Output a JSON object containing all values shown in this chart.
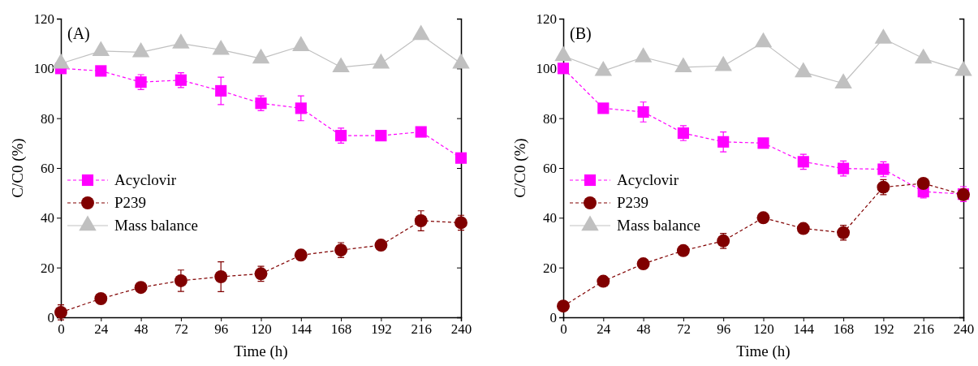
{
  "chart_data": [
    {
      "type": "line",
      "annotations": [
        "(A)"
      ],
      "xlabel": "Time (h)",
      "ylabel": "C/C0 (%)",
      "x": [
        0,
        24,
        48,
        72,
        96,
        120,
        144,
        168,
        192,
        216,
        240
      ],
      "xlim": [
        0,
        240
      ],
      "xticks": [
        0,
        24,
        48,
        72,
        96,
        120,
        144,
        168,
        192,
        216,
        240
      ],
      "ylim": [
        0,
        120
      ],
      "yticks": [
        0,
        20,
        40,
        60,
        80,
        100,
        120
      ],
      "legend": "left",
      "grid": false,
      "series": [
        {
          "name": "Acyclovir",
          "color": "#ff00ff",
          "marker": "square",
          "line_style": "dashed",
          "values": [
            100,
            99,
            94.5,
            95.3,
            91,
            86,
            84,
            73,
            73,
            74.5,
            64
          ],
          "errors": [
            null,
            null,
            3,
            3,
            5.5,
            3,
            5,
            3,
            null,
            null,
            null
          ]
        },
        {
          "name": "P239",
          "color": "#800000",
          "marker": "circle",
          "line_style": "dashed",
          "values": [
            2,
            7.5,
            12,
            14.7,
            16.3,
            17.5,
            25,
            27,
            29,
            38.8,
            38
          ],
          "errors": [
            3,
            null,
            null,
            4.3,
            6,
            3,
            null,
            3,
            null,
            4,
            3
          ]
        },
        {
          "name": "Mass balance",
          "color": "#c0c0c0",
          "marker": "triangle",
          "line_style": "solid",
          "values": [
            102,
            107,
            106.5,
            110,
            107.5,
            104,
            109,
            100.5,
            102,
            113.5,
            102
          ]
        }
      ]
    },
    {
      "type": "line",
      "annotations": [
        "(B)"
      ],
      "xlabel": "Time (h)",
      "ylabel": "C/C0 (%)",
      "x": [
        0,
        24,
        48,
        72,
        96,
        120,
        144,
        168,
        192,
        216,
        240
      ],
      "xlim": [
        0,
        240
      ],
      "xticks": [
        0,
        24,
        48,
        72,
        96,
        120,
        144,
        168,
        192,
        216,
        240
      ],
      "ylim": [
        0,
        120
      ],
      "yticks": [
        0,
        20,
        40,
        60,
        80,
        100,
        120
      ],
      "legend": "left",
      "grid": false,
      "series": [
        {
          "name": "Acyclovir",
          "color": "#ff00ff",
          "marker": "square",
          "line_style": "dashed",
          "values": [
            100,
            84,
            82.5,
            74,
            70.5,
            70,
            62.5,
            59.8,
            59.5,
            50.5,
            49.5
          ],
          "errors": [
            null,
            null,
            4,
            3,
            4,
            null,
            3,
            3,
            3,
            2.5,
            3
          ]
        },
        {
          "name": "P239",
          "color": "#800000",
          "marker": "circle",
          "line_style": "dashed",
          "values": [
            4.5,
            14.5,
            21.5,
            26.8,
            30.7,
            40,
            35.7,
            34,
            52.3,
            53.8,
            49.3
          ],
          "errors": [
            null,
            null,
            null,
            null,
            3,
            null,
            null,
            3,
            3,
            null,
            null
          ]
        },
        {
          "name": "Mass balance",
          "color": "#c0c0c0",
          "marker": "triangle",
          "line_style": "solid",
          "values": [
            105,
            99,
            104.5,
            100.5,
            101,
            110.5,
            98.5,
            94,
            112,
            104,
            99
          ]
        }
      ]
    }
  ]
}
